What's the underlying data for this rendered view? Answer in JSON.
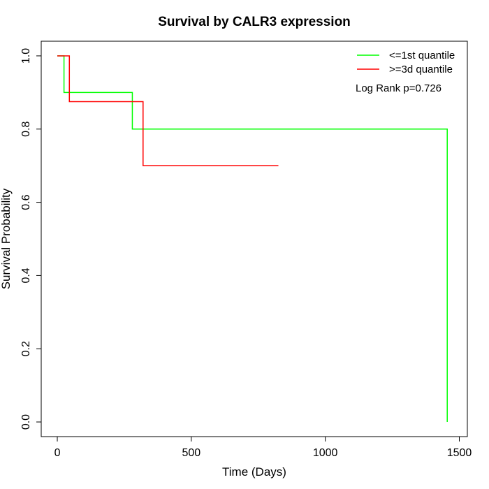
{
  "chart_data": {
    "type": "line",
    "title": "Survival by CALR3 expression",
    "xlabel": "Time (Days)",
    "ylabel": "Survival Probability",
    "xlim": [
      -60,
      1530
    ],
    "ylim": [
      -0.04,
      1.04
    ],
    "x_ticks": [
      0,
      500,
      1000,
      1500
    ],
    "y_ticks": [
      0.0,
      0.2,
      0.4,
      0.6,
      0.8,
      1.0
    ],
    "x_tick_labels": [
      "0",
      "500",
      "1000",
      "1500"
    ],
    "y_tick_labels": [
      "0.0",
      "0.2",
      "0.4",
      "0.6",
      "0.8",
      "1.0"
    ],
    "step": "post",
    "grid": false,
    "legend_position": "top-right",
    "annotation": "Log Rank p=0.726",
    "series": [
      {
        "name": "<=1st quantile",
        "color": "#00ff00",
        "x": [
          0,
          25,
          280,
          1455,
          1455
        ],
        "y": [
          1.0,
          0.9,
          0.8,
          0.8,
          0.0
        ]
      },
      {
        "name": ">=3d quantile",
        "color": "#ff0000",
        "x": [
          0,
          45,
          320,
          825
        ],
        "y": [
          1.0,
          0.875,
          0.7,
          0.7
        ]
      }
    ]
  }
}
